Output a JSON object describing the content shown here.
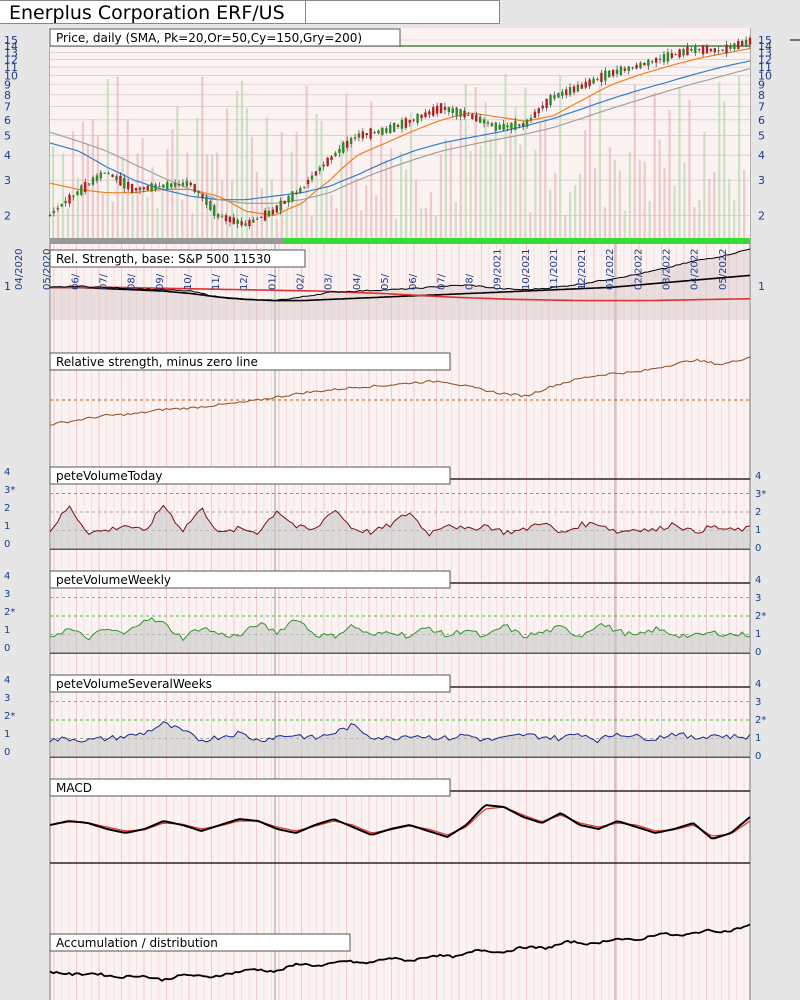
{
  "title": "Enerplus Corporation ERF/US",
  "colors": {
    "up_candle": "#2a8a2a",
    "down_candle": "#b02020",
    "sma20": "#55aa55",
    "sma50": "#f08020",
    "sma150": "#2f7fd0",
    "sma200": "#a0a0a0",
    "rs": "#000000",
    "rs_low": "#e03030",
    "rs_minus": "#8b4a20",
    "vol_today": "#7a1010",
    "vol_weekly": "#2a9a2a",
    "vol_several": "#1a2a8a",
    "macd": "#000000",
    "macd_signal": "#e03030",
    "accum": "#000000",
    "axis_label": "#1a3d8a",
    "ref_dashed": "#22aa22"
  },
  "chart_data": [
    {
      "type": "line",
      "panel": "price",
      "label": "Price, daily (SMA, Pk=20,Or=50,Cy=150,Gry=200)",
      "scale": "log",
      "ylim": [
        1.6,
        15
      ],
      "y_ticks_left": [
        "15",
        "14",
        "13",
        "12",
        "11",
        "10",
        "9",
        "8",
        "7",
        "6",
        "5",
        "4",
        "3",
        "2"
      ],
      "y_ticks_right": [
        "15",
        "14",
        "13",
        "12",
        "11",
        "10",
        "9",
        "8",
        "7",
        "6",
        "5",
        "4",
        "3",
        "2"
      ],
      "x_ticks": [
        "04/2020",
        "05/2020",
        "06/",
        "07/",
        "08/",
        "09/",
        "10/",
        "11/",
        "12/",
        "01/",
        "02/",
        "03/",
        "04/",
        "05/",
        "06/",
        "07/",
        "08/",
        "09/2021",
        "10/2021",
        "11/2021",
        "12/2021",
        "01/2022",
        "02/2022",
        "03/2022",
        "04/2022",
        "05/2022"
      ],
      "x": [
        "2020-04",
        "2020-05",
        "2020-06",
        "2020-07",
        "2020-08",
        "2020-09",
        "2020-10",
        "2020-11",
        "2020-12",
        "2021-01",
        "2021-02",
        "2021-03",
        "2021-04",
        "2021-05",
        "2021-06",
        "2021-07",
        "2021-08",
        "2021-09",
        "2021-10",
        "2021-11",
        "2021-12",
        "2022-01",
        "2022-02",
        "2022-03",
        "2022-04",
        "2022-05"
      ],
      "series": [
        {
          "role": "close",
          "values": [
            2.0,
            2.6,
            3.3,
            2.7,
            2.8,
            2.9,
            2.0,
            1.8,
            2.1,
            2.7,
            3.8,
            5.0,
            5.3,
            6.0,
            6.9,
            6.3,
            5.5,
            5.7,
            7.8,
            8.8,
            10.2,
            11.1,
            12.3,
            13.5,
            13.3,
            14.8
          ]
        },
        {
          "role": "sma50",
          "values": [
            2.9,
            2.7,
            2.6,
            2.6,
            2.7,
            2.7,
            2.5,
            2.1,
            2.0,
            2.3,
            3.0,
            4.0,
            4.6,
            5.3,
            6.0,
            6.5,
            6.2,
            5.9,
            6.3,
            7.5,
            8.9,
            10.0,
            11.0,
            12.0,
            12.8,
            13.6
          ]
        },
        {
          "role": "sma150",
          "values": [
            4.6,
            4.2,
            3.5,
            3.0,
            2.7,
            2.5,
            2.4,
            2.4,
            2.5,
            2.6,
            2.8,
            3.2,
            3.7,
            4.2,
            4.6,
            4.9,
            5.2,
            5.6,
            6.1,
            6.8,
            7.6,
            8.4,
            9.2,
            10.1,
            11.0,
            11.8
          ]
        },
        {
          "role": "sma200",
          "values": [
            5.2,
            4.7,
            4.2,
            3.6,
            3.1,
            2.7,
            2.4,
            2.3,
            2.3,
            2.4,
            2.6,
            3.0,
            3.4,
            3.8,
            4.2,
            4.5,
            4.8,
            5.1,
            5.5,
            6.1,
            6.8,
            7.5,
            8.3,
            9.1,
            9.9,
            10.8
          ]
        }
      ],
      "reference_line": 14.0
    },
    {
      "type": "line",
      "panel": "relative_strength",
      "label": "Rel. Strength, base: S&P 500 11530",
      "y_ticks_left": [
        "1"
      ],
      "y_ticks_right": [
        "1"
      ],
      "series": [
        {
          "role": "rs",
          "values": [
            0.98,
            0.99,
            0.98,
            0.97,
            0.96,
            0.95,
            0.9,
            0.88,
            0.87,
            0.9,
            0.94,
            0.95,
            0.96,
            0.97,
            0.99,
            1.0,
            0.97,
            0.96,
            0.98,
            1.01,
            1.05,
            1.09,
            1.14,
            1.2,
            1.24,
            1.3
          ]
        },
        {
          "role": "rs_low",
          "values": [
            0.98,
            0.98,
            0.97,
            0.96,
            0.95,
            0.93,
            0.9,
            0.88,
            0.87,
            0.87,
            0.88,
            0.89,
            0.9,
            0.91,
            0.92,
            0.93,
            0.94,
            0.95,
            0.96,
            0.97,
            0.98,
            1.0,
            1.02,
            1.04,
            1.06,
            1.08
          ]
        }
      ]
    },
    {
      "type": "line",
      "panel": "rs_minus_zero",
      "label": "Relative strength, minus zero line",
      "series": [
        {
          "role": "rs_minus",
          "values": [
            0.1,
            0.16,
            0.22,
            0.24,
            0.3,
            0.32,
            0.36,
            0.4,
            0.46,
            0.52,
            0.56,
            0.6,
            0.62,
            0.66,
            0.68,
            0.6,
            0.52,
            0.48,
            0.62,
            0.72,
            0.78,
            0.8,
            0.88,
            0.96,
            0.9,
            1.0
          ]
        }
      ]
    },
    {
      "type": "line",
      "panel": "vol_today",
      "label": "peteVolumeToday",
      "ylim": [
        0,
        4
      ],
      "y_ticks_left": [
        "4",
        "3*",
        "2",
        "1",
        "0"
      ],
      "y_ticks_right": [
        "4",
        "3*",
        "2",
        "1",
        "0"
      ],
      "series": [
        {
          "role": "vol",
          "values": [
            1.0,
            2.3,
            0.9,
            1.0,
            1.3,
            0.9,
            2.4,
            1.0,
            2.2,
            0.8,
            1.1,
            0.9,
            2.1,
            1.2,
            1.0,
            2.2,
            1.1,
            0.9,
            1.3,
            2.0,
            0.8,
            1.4,
            1.0,
            1.3,
            0.9,
            1.0,
            1.5,
            0.8,
            1.3,
            1.4,
            0.9,
            1.1,
            1.0,
            1.4,
            0.9,
            1.2,
            1.0,
            1.1
          ]
        }
      ]
    },
    {
      "type": "line",
      "panel": "vol_weekly",
      "label": "peteVolumeWeekly",
      "ylim": [
        0,
        4
      ],
      "y_ticks_left": [
        "4",
        "3",
        "2*",
        "1",
        "0"
      ],
      "y_ticks_right": [
        "4",
        "3",
        "2*",
        "1",
        "0"
      ],
      "series": [
        {
          "role": "vol",
          "values": [
            0.9,
            1.3,
            0.8,
            1.3,
            1.0,
            1.9,
            1.6,
            0.8,
            1.4,
            1.0,
            0.9,
            1.6,
            1.1,
            1.9,
            1.0,
            0.9,
            1.5,
            0.9,
            1.2,
            0.9,
            1.4,
            0.9,
            1.3,
            0.8,
            1.5,
            0.9,
            1.1,
            1.4,
            0.9,
            1.6,
            1.2,
            0.9,
            1.3,
            1.0,
            0.9,
            1.1,
            1.0,
            1.0
          ]
        }
      ]
    },
    {
      "type": "line",
      "panel": "vol_several",
      "label": "peteVolumeSeveralWeeks",
      "ylim": [
        0,
        4
      ],
      "y_ticks_left": [
        "4",
        "3",
        "2*",
        "1",
        "0"
      ],
      "y_ticks_right": [
        "4",
        "3",
        "2*",
        "1",
        "0"
      ],
      "series": [
        {
          "role": "vol",
          "values": [
            0.9,
            1.0,
            0.9,
            1.0,
            1.1,
            1.3,
            1.8,
            1.4,
            0.9,
            1.1,
            1.3,
            0.9,
            1.1,
            1.2,
            1.0,
            1.3,
            1.7,
            1.1,
            1.0,
            1.2,
            1.1,
            1.0,
            1.2,
            0.9,
            1.0,
            1.2,
            1.1,
            1.0,
            1.3,
            0.9,
            1.3,
            1.1,
            1.0,
            1.3,
            1.0,
            1.2,
            1.1,
            1.1
          ]
        }
      ]
    },
    {
      "type": "line",
      "panel": "macd",
      "label": "MACD",
      "series": [
        {
          "role": "macd",
          "values": [
            0.0,
            0.1,
            0.05,
            -0.1,
            -0.2,
            -0.1,
            0.1,
            0.0,
            -0.15,
            0.0,
            0.15,
            0.1,
            -0.1,
            -0.2,
            0.0,
            0.15,
            -0.05,
            -0.25,
            -0.1,
            0.0,
            -0.15,
            -0.3,
            0.0,
            0.5,
            0.45,
            0.2,
            0.05,
            0.3,
            0.0,
            -0.1,
            0.1,
            -0.05,
            -0.2,
            -0.1,
            0.05,
            -0.35,
            -0.2,
            0.2
          ]
        },
        {
          "role": "signal",
          "values": [
            0.0,
            0.08,
            0.06,
            -0.05,
            -0.15,
            -0.12,
            0.05,
            0.02,
            -0.1,
            -0.02,
            0.1,
            0.1,
            -0.05,
            -0.15,
            -0.03,
            0.1,
            0.0,
            -0.2,
            -0.12,
            -0.02,
            -0.1,
            -0.25,
            -0.05,
            0.4,
            0.45,
            0.25,
            0.08,
            0.25,
            0.05,
            -0.05,
            0.05,
            0.0,
            -0.15,
            -0.12,
            0.0,
            -0.28,
            -0.22,
            0.1
          ]
        }
      ]
    },
    {
      "type": "line",
      "panel": "accumulation",
      "label": "Accumulation / distribution",
      "series": [
        {
          "role": "ad",
          "values": [
            0.15,
            0.1,
            0.12,
            0.05,
            0.08,
            0.0,
            0.1,
            0.05,
            0.12,
            0.2,
            0.15,
            0.3,
            0.25,
            0.35,
            0.3,
            0.4,
            0.35,
            0.45,
            0.42,
            0.55,
            0.5,
            0.6,
            0.58,
            0.7,
            0.65,
            0.75,
            0.72,
            0.85,
            0.8,
            0.9,
            0.88,
            1.0
          ]
        }
      ]
    }
  ]
}
